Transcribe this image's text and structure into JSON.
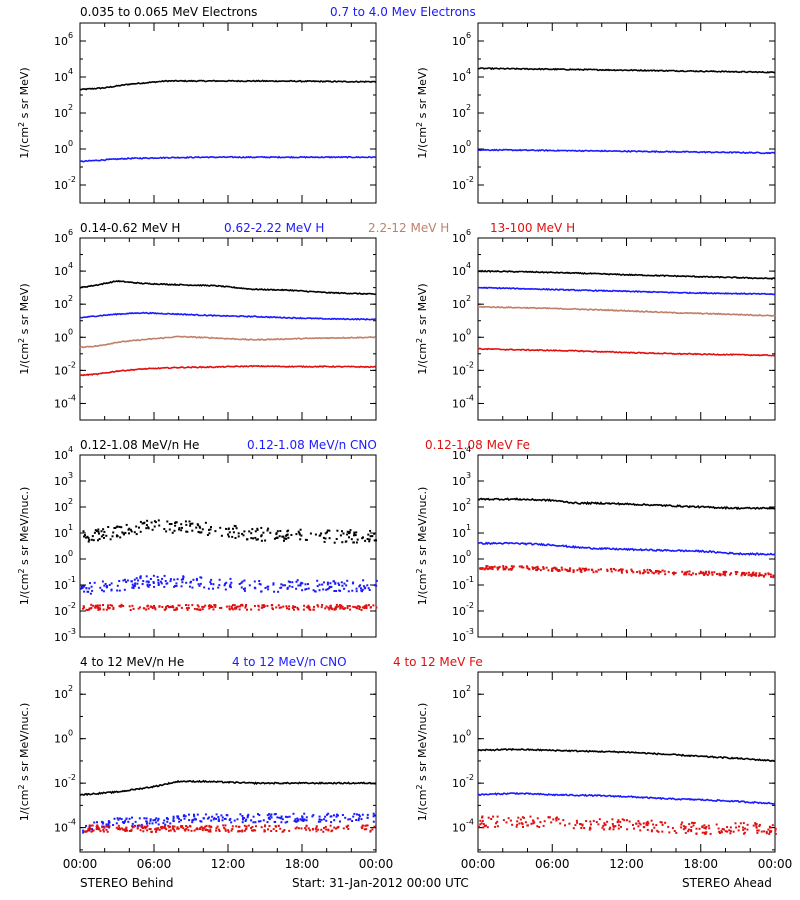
{
  "colors": {
    "black": "#000000",
    "blue": "#1a1aff",
    "tan": "#c0806a",
    "red": "#e01010"
  },
  "footer": {
    "left": "STEREO Behind",
    "center": "Start: 31-Jan-2012 00:00 UTC",
    "right": "STEREO Ahead"
  },
  "chart_data": [
    {
      "row": 1,
      "type": "line",
      "ylabel_base": "1/(cm",
      "ylabel_sup": "2",
      "ylabel_rest": " s sr MeV)",
      "yscale": "log",
      "ylim": [
        0.001,
        10000000
      ],
      "yticks": [
        {
          "exp": "-2",
          "v": 0.01
        },
        {
          "exp": "0",
          "v": 1
        },
        {
          "exp": "2",
          "v": 100
        },
        {
          "exp": "4",
          "v": 10000
        },
        {
          "exp": "6",
          "v": 1000000
        }
      ],
      "legend": [
        {
          "text": "0.035 to 0.065 MeV Electrons",
          "color": "#000000"
        },
        {
          "text": "0.7 to 4.0 Mev Electrons",
          "color": "#1a1aff"
        }
      ],
      "panels": [
        {
          "side": "behind",
          "series": [
            {
              "color": "#000000",
              "style": "line",
              "x": [
                0,
                2,
                4,
                7,
                10,
                14,
                18,
                22,
                24
              ],
              "y": [
                2000,
                2500,
                4000,
                6000,
                6000,
                6000,
                5800,
                5500,
                5500
              ]
            },
            {
              "color": "#1a1aff",
              "style": "line",
              "x": [
                0,
                2,
                4,
                7,
                10,
                14,
                18,
                22,
                24
              ],
              "y": [
                0.2,
                0.25,
                0.3,
                0.33,
                0.35,
                0.35,
                0.35,
                0.35,
                0.35
              ]
            }
          ]
        },
        {
          "side": "ahead",
          "series": [
            {
              "color": "#000000",
              "style": "line",
              "x": [
                0,
                4,
                8,
                12,
                16,
                20,
                24
              ],
              "y": [
                30000,
                28000,
                26000,
                24000,
                22000,
                20000,
                18000
              ]
            },
            {
              "color": "#1a1aff",
              "style": "line",
              "x": [
                0,
                4,
                8,
                12,
                16,
                20,
                24
              ],
              "y": [
                0.9,
                0.85,
                0.8,
                0.75,
                0.7,
                0.65,
                0.6
              ]
            }
          ]
        }
      ]
    },
    {
      "row": 2,
      "type": "line",
      "ylabel_base": "1/(cm",
      "ylabel_sup": "2",
      "ylabel_rest": " s sr MeV)",
      "yscale": "log",
      "ylim": [
        1e-05,
        1000000
      ],
      "yticks": [
        {
          "exp": "-4",
          "v": 0.0001
        },
        {
          "exp": "-2",
          "v": 0.01
        },
        {
          "exp": "0",
          "v": 1
        },
        {
          "exp": "2",
          "v": 100
        },
        {
          "exp": "4",
          "v": 10000
        },
        {
          "exp": "6",
          "v": 1000000
        }
      ],
      "legend": [
        {
          "text": "0.14-0.62 MeV H",
          "color": "#000000"
        },
        {
          "text": "0.62-2.22 MeV H",
          "color": "#1a1aff"
        },
        {
          "text": "2.2-12 MeV H",
          "color": "#c0806a"
        },
        {
          "text": "13-100 MeV H",
          "color": "#e01010"
        }
      ],
      "panels": [
        {
          "side": "behind",
          "series": [
            {
              "color": "#000000",
              "style": "line",
              "x": [
                0,
                1.5,
                3,
                5,
                8,
                11,
                14,
                17,
                20,
                24
              ],
              "y": [
                1000,
                1500,
                2500,
                1800,
                1500,
                1300,
                800,
                700,
                500,
                400
              ]
            },
            {
              "color": "#1a1aff",
              "style": "line",
              "x": [
                0,
                1.5,
                3,
                5,
                8,
                11,
                14,
                17,
                20,
                24
              ],
              "y": [
                15,
                20,
                25,
                30,
                25,
                20,
                18,
                15,
                13,
                12
              ]
            },
            {
              "color": "#c0806a",
              "style": "line",
              "x": [
                0,
                1.5,
                3,
                5,
                8,
                11,
                14,
                17,
                20,
                24
              ],
              "y": [
                0.25,
                0.3,
                0.5,
                0.7,
                1.1,
                0.9,
                0.7,
                0.8,
                0.9,
                1.0
              ]
            },
            {
              "color": "#e01010",
              "style": "line",
              "x": [
                0,
                1.5,
                3,
                5,
                8,
                11,
                14,
                17,
                20,
                24
              ],
              "y": [
                0.005,
                0.006,
                0.009,
                0.012,
                0.015,
                0.016,
                0.018,
                0.017,
                0.017,
                0.016
              ]
            }
          ]
        },
        {
          "side": "ahead",
          "series": [
            {
              "color": "#000000",
              "style": "line",
              "x": [
                0,
                4,
                8,
                12,
                16,
                20,
                24
              ],
              "y": [
                10000,
                9000,
                7500,
                6000,
                5000,
                4200,
                3500
              ]
            },
            {
              "color": "#1a1aff",
              "style": "line",
              "x": [
                0,
                4,
                8,
                12,
                16,
                20,
                24
              ],
              "y": [
                1000,
                850,
                700,
                600,
                500,
                450,
                400
              ]
            },
            {
              "color": "#c0806a",
              "style": "line",
              "x": [
                0,
                4,
                8,
                12,
                16,
                20,
                24
              ],
              "y": [
                70,
                60,
                50,
                40,
                30,
                25,
                20
              ]
            },
            {
              "color": "#e01010",
              "style": "line",
              "x": [
                0,
                4,
                8,
                12,
                16,
                20,
                24
              ],
              "y": [
                0.2,
                0.17,
                0.15,
                0.12,
                0.1,
                0.09,
                0.08
              ]
            }
          ]
        }
      ]
    },
    {
      "row": 3,
      "type": "scatter",
      "ylabel_base": "1/(cm",
      "ylabel_sup": "2",
      "ylabel_rest": " s sr MeV/nuc.)",
      "yscale": "log",
      "ylim": [
        0.001,
        10000
      ],
      "yticks": [
        {
          "exp": "-3",
          "v": 0.001
        },
        {
          "exp": "-2",
          "v": 0.01
        },
        {
          "exp": "-1",
          "v": 0.1
        },
        {
          "exp": "0",
          "v": 1
        },
        {
          "exp": "1",
          "v": 10
        },
        {
          "exp": "2",
          "v": 100
        },
        {
          "exp": "3",
          "v": 1000
        },
        {
          "exp": "4",
          "v": 10000
        }
      ],
      "legend": [
        {
          "text": "0.12-1.08 MeV/n He",
          "color": "#000000"
        },
        {
          "text": "0.12-1.08 MeV/n CNO",
          "color": "#1a1aff"
        },
        {
          "text": "0.12-1.08 MeV Fe",
          "color": "#e01010"
        }
      ],
      "panels": [
        {
          "side": "behind",
          "series": [
            {
              "color": "#000000",
              "style": "scatter",
              "x": [
                0,
                3,
                5,
                8,
                11,
                14,
                17,
                20,
                24
              ],
              "y": [
                8,
                12,
                18,
                20,
                14,
                10,
                9,
                8,
                8
              ],
              "spread": 0.5
            },
            {
              "color": "#1a1aff",
              "style": "scatter",
              "x": [
                0,
                3,
                5,
                8,
                11,
                14,
                17,
                20,
                24
              ],
              "y": [
                0.08,
                0.1,
                0.15,
                0.15,
                0.12,
                0.1,
                0.1,
                0.1,
                0.1
              ],
              "spread": 0.45
            },
            {
              "color": "#e01010",
              "style": "scatter",
              "x": [
                0,
                3,
                5,
                8,
                11,
                14,
                17,
                20,
                24
              ],
              "y": [
                0.015,
                0.015,
                0.015,
                0.015,
                0.015,
                0.015,
                0.015,
                0.015,
                0.015
              ],
              "spread": 0.2
            }
          ]
        },
        {
          "side": "ahead",
          "series": [
            {
              "color": "#000000",
              "style": "line",
              "x": [
                0,
                3,
                6,
                8,
                10,
                14,
                18,
                21,
                24
              ],
              "y": [
                200,
                200,
                180,
                140,
                140,
                120,
                100,
                90,
                90
              ]
            },
            {
              "color": "#1a1aff",
              "style": "line",
              "x": [
                0,
                3,
                6,
                8,
                10,
                14,
                18,
                21,
                24
              ],
              "y": [
                4,
                4,
                3.5,
                2.8,
                2.5,
                2.2,
                2,
                1.6,
                1.5
              ]
            },
            {
              "color": "#e01010",
              "style": "scatter",
              "x": [
                0,
                3,
                6,
                8,
                10,
                14,
                18,
                21,
                24
              ],
              "y": [
                0.5,
                0.5,
                0.45,
                0.4,
                0.4,
                0.35,
                0.3,
                0.3,
                0.25
              ],
              "spread": 0.15
            }
          ]
        }
      ]
    },
    {
      "row": 4,
      "type": "scatter",
      "ylabel_base": "1/(cm",
      "ylabel_sup": "2",
      "ylabel_rest": " s sr MeV/nuc.)",
      "yscale": "log",
      "ylim": [
        8e-06,
        1000
      ],
      "yticks": [
        {
          "exp": "-4",
          "v": 0.0001
        },
        {
          "exp": "-2",
          "v": 0.01
        },
        {
          "exp": "0",
          "v": 1
        },
        {
          "exp": "2",
          "v": 100
        }
      ],
      "legend": [
        {
          "text": "4 to 12 MeV/n He",
          "color": "#000000"
        },
        {
          "text": "4 to 12 MeV/n CNO",
          "color": "#1a1aff"
        },
        {
          "text": "4 to 12 MeV Fe",
          "color": "#e01010"
        }
      ],
      "panels": [
        {
          "side": "behind",
          "series": [
            {
              "color": "#000000",
              "style": "line",
              "x": [
                0,
                3,
                6,
                8,
                10,
                14,
                18,
                22,
                24
              ],
              "y": [
                0.003,
                0.004,
                0.007,
                0.012,
                0.012,
                0.01,
                0.01,
                0.01,
                0.01
              ]
            },
            {
              "color": "#1a1aff",
              "style": "scatter",
              "x": [
                0,
                3,
                6,
                8,
                12,
                16,
                20,
                24
              ],
              "y": [
                0.0001,
                0.0002,
                0.0002,
                0.0003,
                0.0003,
                0.0003,
                0.0003,
                0.0003
              ],
              "spread": 0.4
            },
            {
              "color": "#e01010",
              "style": "scatter",
              "x": [
                0,
                6,
                12,
                18,
                24
              ],
              "y": [
                0.0001,
                0.0001,
                0.0001,
                0.0001,
                0.0001
              ],
              "spread": 0.3
            }
          ]
        },
        {
          "side": "ahead",
          "series": [
            {
              "color": "#000000",
              "style": "line",
              "x": [
                0,
                3,
                6,
                9,
                12,
                15,
                18,
                21,
                24
              ],
              "y": [
                0.3,
                0.33,
                0.3,
                0.27,
                0.25,
                0.2,
                0.16,
                0.13,
                0.1
              ]
            },
            {
              "color": "#1a1aff",
              "style": "line",
              "x": [
                0,
                3,
                6,
                9,
                12,
                15,
                18,
                21,
                24
              ],
              "y": [
                0.003,
                0.0035,
                0.003,
                0.0028,
                0.0025,
                0.002,
                0.0018,
                0.0015,
                0.0012
              ]
            },
            {
              "color": "#e01010",
              "style": "scatter",
              "x": [
                0,
                3,
                6,
                9,
                12,
                15,
                18,
                21,
                24
              ],
              "y": [
                0.0002,
                0.0002,
                0.0002,
                0.00015,
                0.00015,
                0.00012,
                0.0001,
                0.0001,
                0.0001
              ],
              "spread": 0.5
            }
          ]
        }
      ]
    }
  ],
  "xaxis": {
    "ticks": [
      "00:00",
      "06:00",
      "12:00",
      "18:00",
      "00:00"
    ],
    "tick_hours": [
      0,
      6,
      12,
      18,
      24
    ],
    "xlim": [
      0,
      24
    ]
  }
}
